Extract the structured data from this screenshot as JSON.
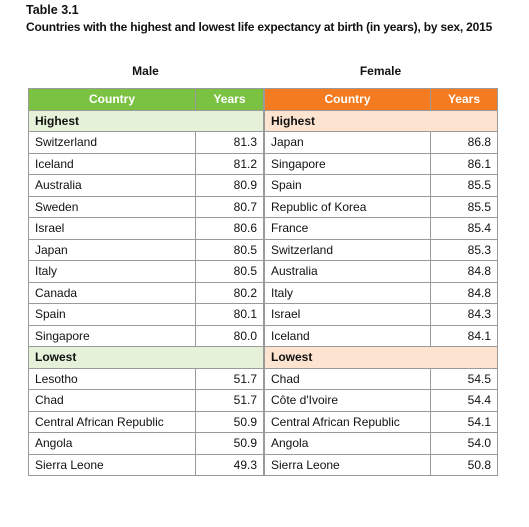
{
  "header": {
    "label": "Table 3.1",
    "title": "Countries with the highest and lowest life expectancy at birth (in years), by sex, 2015"
  },
  "tables": [
    {
      "heading": "Male",
      "columns": [
        "Country",
        "Years"
      ],
      "sections": [
        {
          "label": "Highest",
          "rows": [
            [
              "Switzerland",
              "81.3"
            ],
            [
              "Iceland",
              "81.2"
            ],
            [
              "Australia",
              "80.9"
            ],
            [
              "Sweden",
              "80.7"
            ],
            [
              "Israel",
              "80.6"
            ],
            [
              "Japan",
              "80.5"
            ],
            [
              "Italy",
              "80.5"
            ],
            [
              "Canada",
              "80.2"
            ],
            [
              "Spain",
              "80.1"
            ],
            [
              "Singapore",
              "80.0"
            ]
          ]
        },
        {
          "label": "Lowest",
          "rows": [
            [
              "Lesotho",
              "51.7"
            ],
            [
              "Chad",
              "51.7"
            ],
            [
              "Central African Republic",
              "50.9"
            ],
            [
              "Angola",
              "50.9"
            ],
            [
              "Sierra Leone",
              "49.3"
            ]
          ]
        }
      ]
    },
    {
      "heading": "Female",
      "columns": [
        "Country",
        "Years"
      ],
      "sections": [
        {
          "label": "Highest",
          "rows": [
            [
              "Japan",
              "86.8"
            ],
            [
              "Singapore",
              "86.1"
            ],
            [
              "Spain",
              "85.5"
            ],
            [
              "Republic of Korea",
              "85.5"
            ],
            [
              "France",
              "85.4"
            ],
            [
              "Switzerland",
              "85.3"
            ],
            [
              "Australia",
              "84.8"
            ],
            [
              "Italy",
              "84.8"
            ],
            [
              "Israel",
              "84.3"
            ],
            [
              "Iceland",
              "84.1"
            ]
          ]
        },
        {
          "label": "Lowest",
          "rows": [
            [
              "Chad",
              "54.5"
            ],
            [
              "Côte d'Ivoire",
              "54.4"
            ],
            [
              "Central African Republic",
              "54.1"
            ],
            [
              "Angola",
              "54.0"
            ],
            [
              "Sierra Leone",
              "50.8"
            ]
          ]
        }
      ]
    }
  ]
}
